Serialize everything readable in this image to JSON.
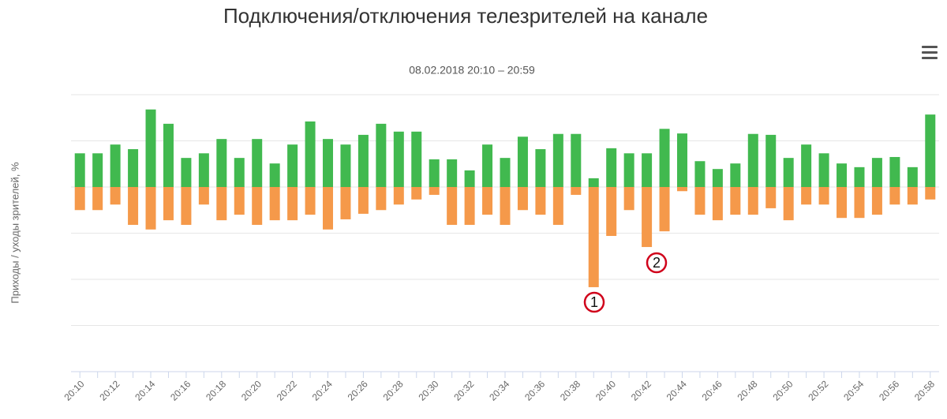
{
  "chart_data": {
    "type": "bar",
    "title": "Подключения/отключения телезрителей на канале",
    "subtitle": "08.02.2018 20:10 – 20:59",
    "y_label": "Приходы / уходы зрителей, %",
    "categories": [
      "20:10",
      null,
      "20:12",
      null,
      "20:14",
      null,
      "20:16",
      null,
      "20:18",
      null,
      "20:20",
      null,
      "20:22",
      null,
      "20:24",
      null,
      "20:26",
      null,
      "20:28",
      null,
      "20:30",
      null,
      "20:32",
      null,
      "20:34",
      null,
      "20:36",
      null,
      "20:38",
      null,
      "20:40",
      null,
      "20:42",
      null,
      "20:44",
      null,
      "20:46",
      null,
      "20:48",
      null,
      "20:50",
      null,
      "20:52",
      null,
      "20:54",
      null,
      "20:56",
      null,
      "20:58"
    ],
    "series": [
      {
        "color": "#41b94f",
        "values": [
          0.73,
          0.73,
          0.92,
          0.82,
          1.68,
          1.37,
          0.63,
          0.73,
          1.04,
          0.63,
          1.04,
          0.51,
          0.92,
          1.42,
          1.04,
          0.92,
          1.13,
          1.37,
          1.2,
          1.2,
          0.6,
          0.6,
          0.36,
          0.92,
          0.63,
          1.09,
          0.82,
          1.15,
          1.15,
          0.19,
          0.84,
          0.73,
          0.73,
          1.26,
          1.16,
          0.56,
          0.39,
          0.51,
          1.15,
          1.13,
          0.63,
          0.92,
          0.73,
          0.51,
          0.43,
          0.63,
          0.65,
          0.43,
          1.57
        ]
      },
      {
        "color": "#f5994a",
        "values": [
          -0.5,
          -0.5,
          -0.38,
          -0.82,
          -0.92,
          -0.72,
          -0.82,
          -0.38,
          -0.72,
          -0.6,
          -0.82,
          -0.72,
          -0.72,
          -0.6,
          -0.92,
          -0.7,
          -0.58,
          -0.5,
          -0.38,
          -0.27,
          -0.17,
          -0.82,
          -0.82,
          -0.6,
          -0.82,
          -0.5,
          -0.6,
          -0.82,
          -0.17,
          -2.17,
          -1.06,
          -0.5,
          -1.3,
          -0.96,
          -0.09,
          -0.6,
          -0.72,
          -0.6,
          -0.6,
          -0.46,
          -0.72,
          -0.38,
          -0.38,
          -0.67,
          -0.67,
          -0.6,
          -0.38,
          -0.38,
          -0.27
        ]
      }
    ],
    "ylim": [
      -4,
      2
    ],
    "yticks": [
      -4,
      -3,
      -2,
      -1,
      0,
      1,
      2
    ],
    "show_y_tick_labels": false,
    "grid": true,
    "annotations": [
      "1",
      "2"
    ]
  }
}
